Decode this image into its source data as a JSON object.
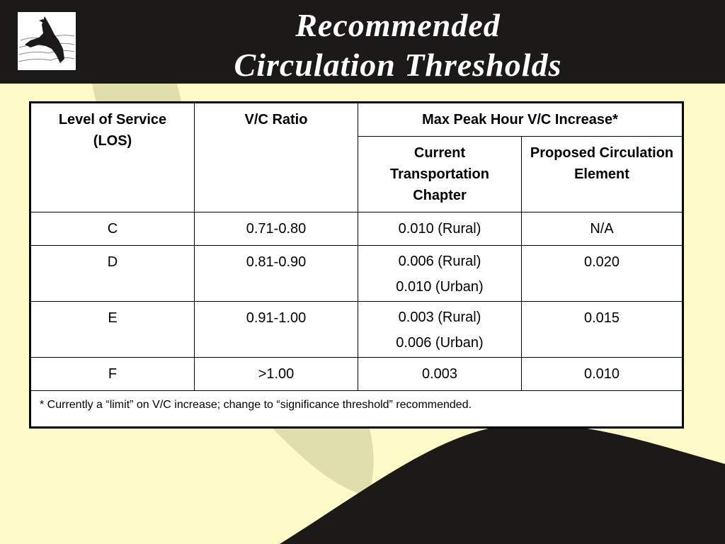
{
  "title": {
    "line1": "Recommended",
    "line2": "Circulation Thresholds"
  },
  "logo": {
    "icon": "eagle-logo-icon"
  },
  "colors": {
    "header": "#1b1a19",
    "background": "#fffbc8",
    "watermark": "#dcd8a8"
  },
  "table": {
    "headers": {
      "los": "Level of Service (LOS)",
      "vc_ratio": "V/C Ratio",
      "max_increase": "Max Peak Hour V/C Increase*",
      "current": "Current Transportation Chapter",
      "proposed": "Proposed Circulation Element"
    },
    "rows": [
      {
        "los": "C",
        "vc": "0.71-0.80",
        "current": [
          "0.010 (Rural)"
        ],
        "proposed": "N/A"
      },
      {
        "los": "D",
        "vc": "0.81-0.90",
        "current": [
          "0.006 (Rural)",
          "0.010 (Urban)"
        ],
        "proposed": "0.020"
      },
      {
        "los": "E",
        "vc": "0.91-1.00",
        "current": [
          "0.003 (Rural)",
          "0.006 (Urban)"
        ],
        "proposed": "0.015"
      },
      {
        "los": "F",
        "vc": ">1.00",
        "current": [
          "0.003"
        ],
        "proposed": "0.010"
      }
    ],
    "footnote": "* Currently a “limit” on V/C increase; change to “significance threshold” recommended."
  }
}
